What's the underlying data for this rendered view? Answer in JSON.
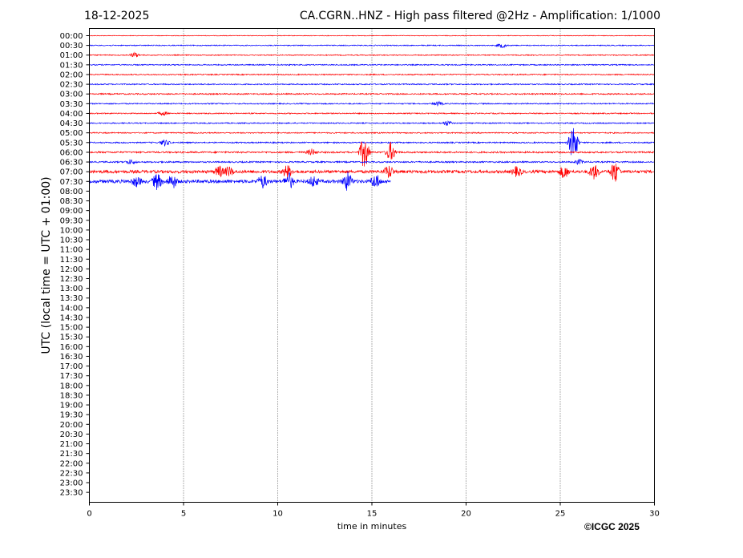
{
  "header": {
    "date": "18-12-2025",
    "title": "CA.CGRN..HNZ - High pass filtered @2Hz - Amplification: 1/1000"
  },
  "footer": {
    "copyright": "©ICGC 2025"
  },
  "chart_data": {
    "type": "line",
    "title": "CA.CGRN..HNZ - High pass filtered @2Hz - Amplification: 1/1000",
    "xlabel": "time in minutes",
    "ylabel": "UTC (local time = UTC + 01:00)",
    "xlim": [
      0,
      30
    ],
    "x_ticks": [
      0,
      5,
      10,
      15,
      20,
      25,
      30
    ],
    "y_tick_labels": [
      "00:00",
      "00:30",
      "01:00",
      "01:30",
      "02:00",
      "02:30",
      "03:00",
      "03:30",
      "04:00",
      "04:30",
      "05:00",
      "05:30",
      "06:00",
      "06:30",
      "07:00",
      "07:30",
      "08:00",
      "08:30",
      "09:00",
      "09:30",
      "10:00",
      "10:30",
      "11:00",
      "11:30",
      "12:00",
      "12:30",
      "13:00",
      "13:30",
      "14:00",
      "14:30",
      "15:00",
      "15:30",
      "16:00",
      "16:30",
      "17:00",
      "17:30",
      "18:00",
      "18:30",
      "19:00",
      "19:30",
      "20:00",
      "20:30",
      "21:00",
      "21:30",
      "22:00",
      "22:30",
      "23:00",
      "23:30"
    ],
    "grid": "vertical dotted lines at 5-minute ticks",
    "series_colors": [
      "#ff0000",
      "#0000ff"
    ],
    "traces": [
      {
        "row": "00:00",
        "color": "#ff0000",
        "start": 0,
        "end": 30,
        "noise": 0.4,
        "bursts": []
      },
      {
        "row": "00:30",
        "color": "#0000ff",
        "start": 0,
        "end": 30,
        "noise": 0.6,
        "bursts": [
          [
            21.9,
            3
          ]
        ]
      },
      {
        "row": "01:00",
        "color": "#ff0000",
        "start": 0,
        "end": 30,
        "noise": 0.6,
        "bursts": [
          [
            2.4,
            3
          ]
        ]
      },
      {
        "row": "01:30",
        "color": "#0000ff",
        "start": 0,
        "end": 30,
        "noise": 0.7,
        "bursts": []
      },
      {
        "row": "02:00",
        "color": "#ff0000",
        "start": 0,
        "end": 30,
        "noise": 0.7,
        "bursts": []
      },
      {
        "row": "02:30",
        "color": "#0000ff",
        "start": 0,
        "end": 30,
        "noise": 0.7,
        "bursts": []
      },
      {
        "row": "03:00",
        "color": "#ff0000",
        "start": 0,
        "end": 30,
        "noise": 0.8,
        "bursts": []
      },
      {
        "row": "03:30",
        "color": "#0000ff",
        "start": 0,
        "end": 30,
        "noise": 0.7,
        "bursts": [
          [
            18.5,
            2.5
          ]
        ]
      },
      {
        "row": "04:00",
        "color": "#ff0000",
        "start": 0,
        "end": 30,
        "noise": 0.7,
        "bursts": [
          [
            3.9,
            2.5
          ]
        ]
      },
      {
        "row": "04:30",
        "color": "#0000ff",
        "start": 0,
        "end": 30,
        "noise": 0.7,
        "bursts": [
          [
            19.0,
            3
          ]
        ]
      },
      {
        "row": "05:00",
        "color": "#ff0000",
        "start": 0,
        "end": 30,
        "noise": 0.7,
        "bursts": []
      },
      {
        "row": "05:30",
        "color": "#0000ff",
        "start": 0,
        "end": 30,
        "noise": 0.8,
        "bursts": [
          [
            4.0,
            4
          ],
          [
            25.7,
            24
          ]
        ]
      },
      {
        "row": "06:00",
        "color": "#ff0000",
        "start": 0,
        "end": 30,
        "noise": 1.0,
        "bursts": [
          [
            11.8,
            4
          ],
          [
            14.6,
            22
          ],
          [
            16.0,
            12
          ]
        ]
      },
      {
        "row": "06:30",
        "color": "#0000ff",
        "start": 0,
        "end": 30,
        "noise": 0.9,
        "bursts": [
          [
            2.2,
            3
          ],
          [
            26.0,
            3
          ]
        ]
      },
      {
        "row": "07:00",
        "color": "#ff0000",
        "start": 0,
        "end": 30,
        "noise": 1.8,
        "bursts": [
          [
            6.9,
            7
          ],
          [
            7.4,
            6
          ],
          [
            10.5,
            8
          ],
          [
            15.9,
            8
          ],
          [
            22.7,
            6
          ],
          [
            25.2,
            8
          ],
          [
            26.8,
            9
          ],
          [
            27.9,
            14
          ]
        ]
      },
      {
        "row": "07:30",
        "color": "#0000ff",
        "start": 0,
        "end": 16,
        "noise": 2.0,
        "bursts": [
          [
            2.5,
            6
          ],
          [
            3.6,
            10
          ],
          [
            4.4,
            9
          ],
          [
            9.2,
            8
          ],
          [
            10.6,
            10
          ],
          [
            11.9,
            7
          ],
          [
            13.7,
            12
          ],
          [
            15.2,
            9
          ]
        ]
      }
    ]
  }
}
